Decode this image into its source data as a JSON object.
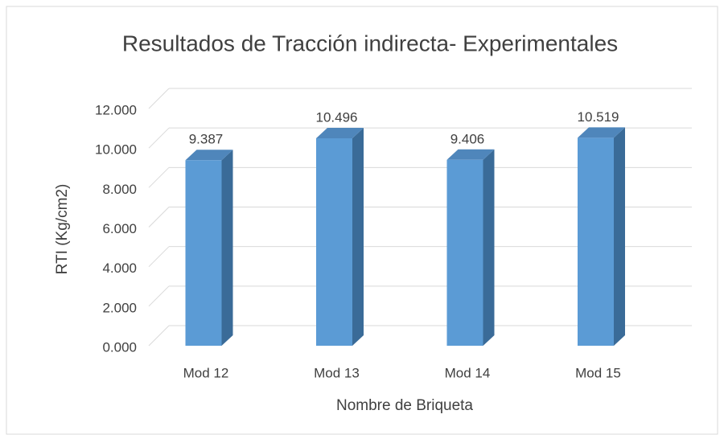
{
  "chart_data": {
    "type": "bar3d",
    "title": "Resultados de Tracción indirecta- Experimentales",
    "x_label": "Nombre de Briqueta",
    "y_label": "RTI (Kg/cm2)",
    "categories": [
      "Mod 12",
      "Mod 13",
      "Mod 14",
      "Mod 15"
    ],
    "values": [
      9.387,
      10.496,
      9.406,
      10.519
    ],
    "color": "#5b9bd5",
    "ylim": [
      0,
      12
    ],
    "yticks": [
      {
        "value": 0,
        "label": "0.000"
      },
      {
        "value": 2,
        "label": "2.000"
      },
      {
        "value": 4,
        "label": "4.000"
      },
      {
        "value": 6,
        "label": "6.000"
      },
      {
        "value": 8,
        "label": "8.000"
      },
      {
        "value": 10,
        "label": "10.000"
      },
      {
        "value": 12,
        "label": "12.000"
      }
    ],
    "grid": true
  }
}
